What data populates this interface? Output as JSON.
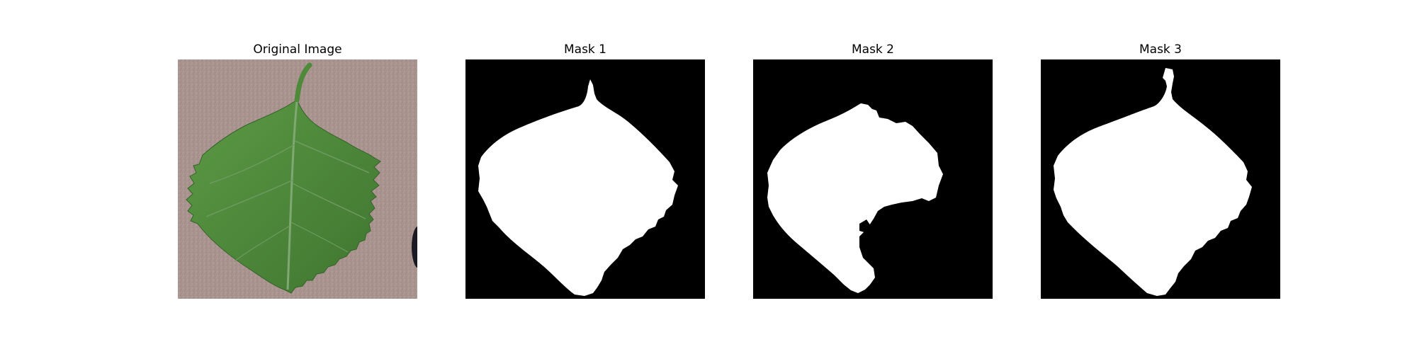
{
  "figure": {
    "panels": [
      {
        "title": "Original Image",
        "kind": "photo",
        "subject": "green-leaf"
      },
      {
        "title": "Mask 1",
        "kind": "binary-mask"
      },
      {
        "title": "Mask 2",
        "kind": "binary-mask"
      },
      {
        "title": "Mask 3",
        "kind": "binary-mask"
      }
    ],
    "colors": {
      "mask_background": "#000000",
      "mask_foreground": "#ffffff",
      "photo_background": "#a9938f",
      "leaf": "#4f8a3c",
      "leaf_dark": "#3c6f2d",
      "vein": "#7fa872"
    }
  }
}
